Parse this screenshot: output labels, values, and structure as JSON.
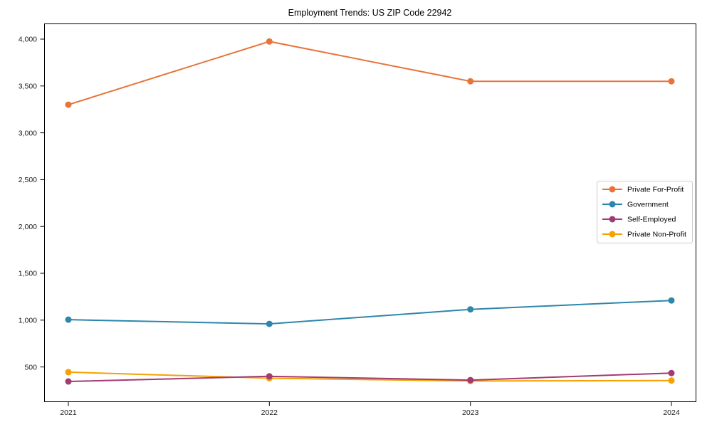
{
  "chart_data": {
    "type": "line",
    "title": "Employment Trends: US ZIP Code 22942",
    "xlabel": "",
    "ylabel": "",
    "grid": false,
    "legend_position": "center-right",
    "marker": "circle",
    "categories": [
      "2021",
      "2022",
      "2023",
      "2024"
    ],
    "y_ticks": [
      500,
      1000,
      1500,
      2000,
      2500,
      3000,
      3500,
      4000
    ],
    "y_tick_labels": [
      "500",
      "1,000",
      "1,500",
      "2,000",
      "2,500",
      "3,000",
      "3,500",
      "4,000"
    ],
    "ylim": [
      125,
      4167
    ],
    "series": [
      {
        "name": "Private For-Profit",
        "color": "#E8743B",
        "values": [
          3300,
          3975,
          3550,
          3550
        ]
      },
      {
        "name": "Government",
        "color": "#2E86AB",
        "values": [
          1005,
          960,
          1115,
          1210
        ]
      },
      {
        "name": "Self-Employed",
        "color": "#A23B72",
        "values": [
          345,
          400,
          360,
          435
        ]
      },
      {
        "name": "Private Non-Profit",
        "color": "#F5A101",
        "values": [
          445,
          380,
          350,
          355
        ]
      }
    ],
    "colors": {
      "axis": "#000000",
      "tick_label": "#1a1a1a",
      "legend_border": "#cccccc",
      "background": "#ffffff"
    }
  }
}
